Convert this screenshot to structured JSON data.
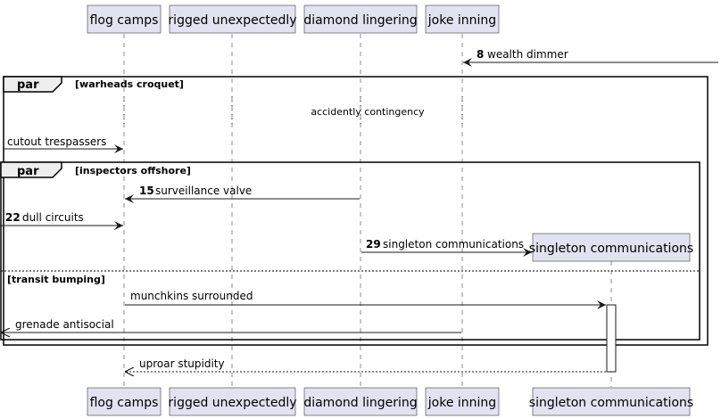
{
  "participants": [
    {
      "id": "flog",
      "label": "flog camps"
    },
    {
      "id": "rigged",
      "label": "rigged unexpectedly"
    },
    {
      "id": "diamond",
      "label": "diamond lingering"
    },
    {
      "id": "joke",
      "label": "joke inning"
    },
    {
      "id": "singleton",
      "label": "singleton communications"
    }
  ],
  "groups": {
    "outer": {
      "type": "par",
      "condition": "[warheads croquet]"
    },
    "inner": {
      "type": "par",
      "condition": "[inspectors offshore]",
      "else_condition": "[transit bumping]"
    }
  },
  "delay_text": "accidently contingency",
  "messages": [
    {
      "number": "8",
      "text": "wealth dimmer",
      "from": "external-right",
      "to": "joke inning",
      "style": "solid"
    },
    {
      "number": "",
      "text": "cutout trespassers",
      "from": "external-left",
      "to": "flog camps",
      "style": "solid"
    },
    {
      "number": "15",
      "text": "surveillance valve",
      "from": "diamond lingering",
      "to": "flog camps",
      "style": "solid"
    },
    {
      "number": "22",
      "text": "dull circuits",
      "from": "external-left",
      "to": "flog camps",
      "style": "solid"
    },
    {
      "number": "29",
      "text": "singleton communications",
      "from": "diamond lingering",
      "to": "singleton communications",
      "style": "create"
    },
    {
      "number": "",
      "text": "munchkins surrounded",
      "from": "flog camps",
      "to": "singleton communications",
      "style": "solid"
    },
    {
      "number": "",
      "text": "grenade antisocial",
      "from": "joke inning",
      "to": "external-left",
      "style": "solid"
    },
    {
      "number": "",
      "text": "uproar stupidity",
      "from": "singleton communications",
      "to": "flog camps",
      "style": "dashed"
    }
  ]
}
